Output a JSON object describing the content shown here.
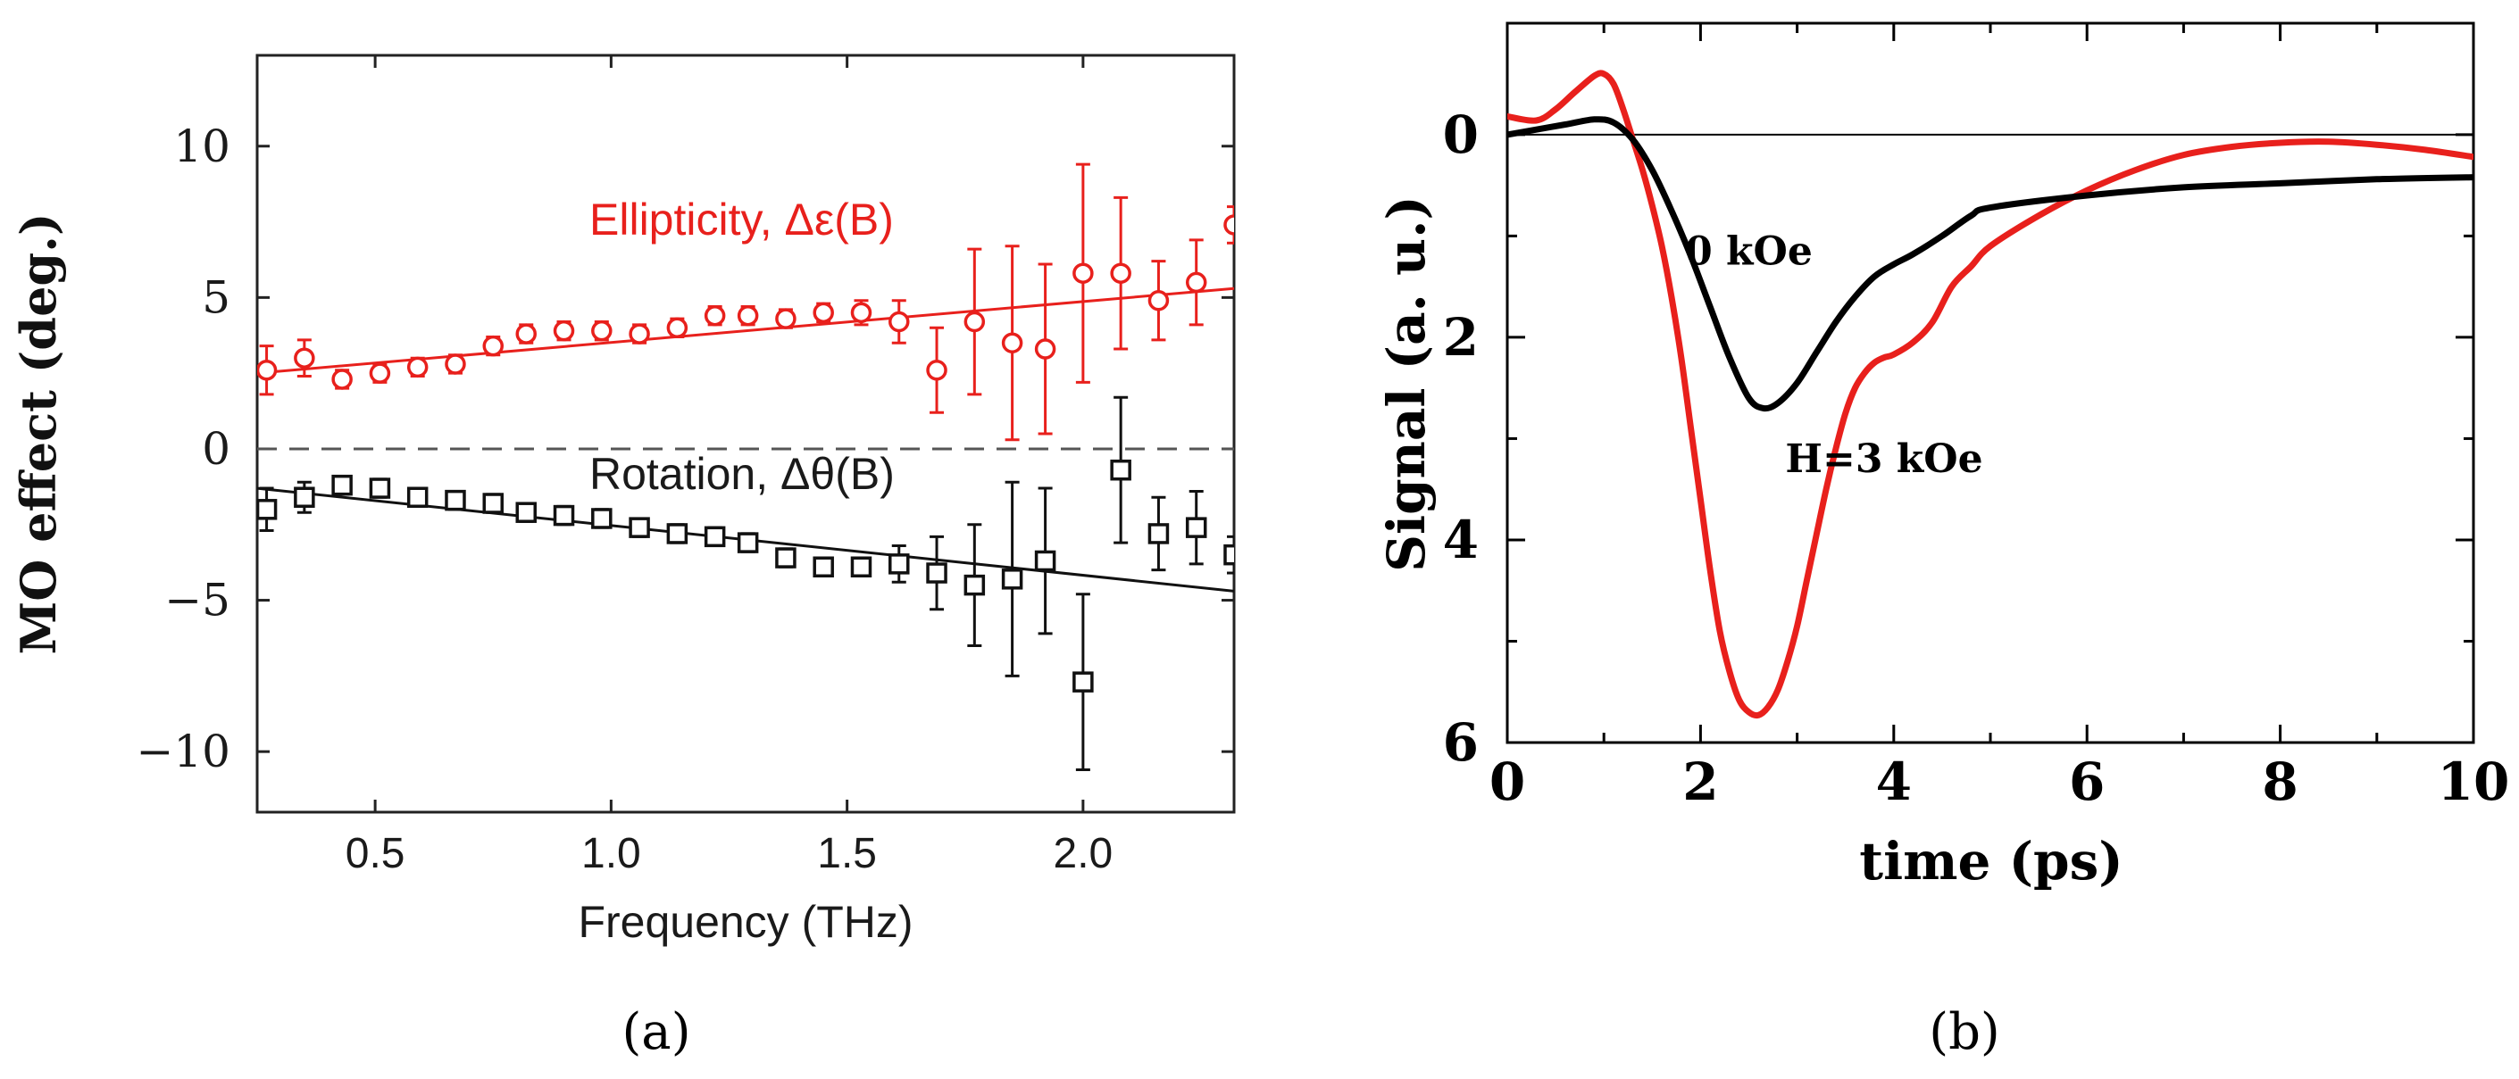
{
  "chart_data": [
    {
      "type": "scatter",
      "panel_label": "(a)",
      "xlabel": "Frequency (THz)",
      "ylabel": "MO effect (deg.)",
      "xlim": [
        0.25,
        2.32
      ],
      "ylim": [
        -12,
        13
      ],
      "xticks": [
        0.5,
        1.0,
        1.5,
        2.0
      ],
      "xtick_labels": [
        "0.5",
        "1.0",
        "1.5",
        "2.0"
      ],
      "yticks": [
        10,
        5,
        0,
        -5,
        -10
      ],
      "ytick_labels": [
        "10",
        "5",
        "0",
        "−5",
        "−10"
      ],
      "zero_line": "dashed",
      "series": [
        {
          "name": "Ellipticity, Δε(B)",
          "color": "#e8201c",
          "marker": "circle",
          "x": [
            0.27,
            0.35,
            0.43,
            0.51,
            0.59,
            0.67,
            0.75,
            0.82,
            0.9,
            0.98,
            1.06,
            1.14,
            1.22,
            1.29,
            1.37,
            1.45,
            1.53,
            1.61,
            1.69,
            1.77,
            1.85,
            1.92,
            2.0,
            2.08,
            2.16,
            2.24,
            2.32
          ],
          "y": [
            2.6,
            3.0,
            2.3,
            2.5,
            2.7,
            2.8,
            3.4,
            3.8,
            3.9,
            3.9,
            3.8,
            4.0,
            4.4,
            4.4,
            4.3,
            4.5,
            4.5,
            4.2,
            2.6,
            4.2,
            3.5,
            3.3,
            5.8,
            5.8,
            4.9,
            5.5,
            7.4
          ],
          "err": [
            0.8,
            0.6,
            0.3,
            0.3,
            0.3,
            0.3,
            0.3,
            0.3,
            0.3,
            0.3,
            0.3,
            0.3,
            0.3,
            0.3,
            0.3,
            0.3,
            0.4,
            0.7,
            1.4,
            2.4,
            3.2,
            2.8,
            3.6,
            2.5,
            1.3,
            1.4,
            0.6
          ],
          "fit": {
            "x": [
              0.25,
              2.32
            ],
            "y": [
              2.5,
              5.3
            ]
          }
        },
        {
          "name": "Rotation, Δθ(B)",
          "color": "#111111",
          "marker": "square",
          "x": [
            0.27,
            0.35,
            0.43,
            0.51,
            0.59,
            0.67,
            0.75,
            0.82,
            0.9,
            0.98,
            1.06,
            1.14,
            1.22,
            1.29,
            1.37,
            1.45,
            1.53,
            1.61,
            1.69,
            1.77,
            1.85,
            1.92,
            2.0,
            2.08,
            2.16,
            2.24,
            2.32
          ],
          "y": [
            -2.0,
            -1.6,
            -1.2,
            -1.3,
            -1.6,
            -1.7,
            -1.8,
            -2.1,
            -2.2,
            -2.3,
            -2.6,
            -2.8,
            -2.9,
            -3.1,
            -3.6,
            -3.9,
            -3.9,
            -3.8,
            -4.1,
            -4.5,
            -4.3,
            -3.7,
            -7.7,
            -0.7,
            -2.8,
            -2.6,
            -3.5
          ],
          "err": [
            0.7,
            0.5,
            0.3,
            0.3,
            0.3,
            0.3,
            0.3,
            0.3,
            0.3,
            0.3,
            0.3,
            0.3,
            0.3,
            0.3,
            0.3,
            0.3,
            0.3,
            0.6,
            1.2,
            2.0,
            3.2,
            2.4,
            2.9,
            2.4,
            1.2,
            1.2,
            0.6
          ],
          "fit": {
            "x": [
              0.25,
              2.32
            ],
            "y": [
              -1.3,
              -4.7
            ]
          }
        }
      ]
    },
    {
      "type": "line",
      "panel_label": "(b)",
      "xlabel": "time (ps)",
      "ylabel": "Signal  (a. u.)",
      "xlim": [
        0,
        10
      ],
      "ylim": [
        6,
        -1.1
      ],
      "y_inverted": true,
      "xticks": [
        0,
        2,
        4,
        6,
        8,
        10
      ],
      "xtick_labels": [
        "0",
        "2",
        "4",
        "6",
        "8",
        "10"
      ],
      "yticks": [
        0,
        2,
        4,
        6
      ],
      "ytick_labels": [
        "0",
        "2",
        "4",
        "6"
      ],
      "series": [
        {
          "name": "H=3 kOe",
          "color": "#e8201c",
          "x": [
            0,
            0.3,
            0.5,
            0.7,
            0.9,
            1.0,
            1.1,
            1.2,
            1.3,
            1.4,
            1.5,
            1.6,
            1.7,
            1.8,
            1.9,
            2.0,
            2.1,
            2.2,
            2.3,
            2.4,
            2.5,
            2.6,
            2.7,
            2.8,
            2.9,
            3.0,
            3.1,
            3.2,
            3.3,
            3.4,
            3.5,
            3.6,
            3.7,
            3.8,
            3.9,
            4.0,
            4.2,
            4.4,
            4.6,
            4.8,
            5.0,
            5.5,
            6.0,
            6.5,
            7.0,
            7.5,
            8.0,
            8.5,
            9.0,
            9.5,
            10.0
          ],
          "y": [
            -0.18,
            -0.14,
            -0.25,
            -0.42,
            -0.58,
            -0.6,
            -0.5,
            -0.25,
            0.05,
            0.35,
            0.7,
            1.1,
            1.6,
            2.2,
            2.9,
            3.6,
            4.3,
            4.9,
            5.3,
            5.58,
            5.7,
            5.73,
            5.65,
            5.48,
            5.2,
            4.85,
            4.4,
            3.95,
            3.5,
            3.1,
            2.75,
            2.5,
            2.35,
            2.25,
            2.2,
            2.17,
            2.05,
            1.85,
            1.5,
            1.3,
            1.1,
            0.8,
            0.55,
            0.35,
            0.2,
            0.12,
            0.08,
            0.07,
            0.1,
            0.15,
            0.22
          ],
          "label_anchor": {
            "x": 3.9,
            "y": 3.2
          }
        },
        {
          "name": "0 kOe",
          "color": "#000000",
          "x": [
            0,
            0.3,
            0.6,
            0.9,
            1.1,
            1.3,
            1.5,
            1.7,
            1.9,
            2.1,
            2.3,
            2.5,
            2.65,
            2.8,
            3.0,
            3.2,
            3.4,
            3.6,
            3.8,
            4.0,
            4.2,
            4.5,
            4.8,
            5.0,
            6.0,
            7.0,
            8.0,
            9.0,
            10.0
          ],
          "y": [
            0.0,
            -0.05,
            -0.1,
            -0.15,
            -0.12,
            0.05,
            0.35,
            0.75,
            1.2,
            1.7,
            2.2,
            2.6,
            2.7,
            2.65,
            2.45,
            2.15,
            1.85,
            1.6,
            1.4,
            1.28,
            1.18,
            1.0,
            0.8,
            0.72,
            0.6,
            0.52,
            0.48,
            0.44,
            0.42
          ],
          "label_anchor": {
            "x": 2.5,
            "y": 1.15
          }
        }
      ]
    }
  ]
}
